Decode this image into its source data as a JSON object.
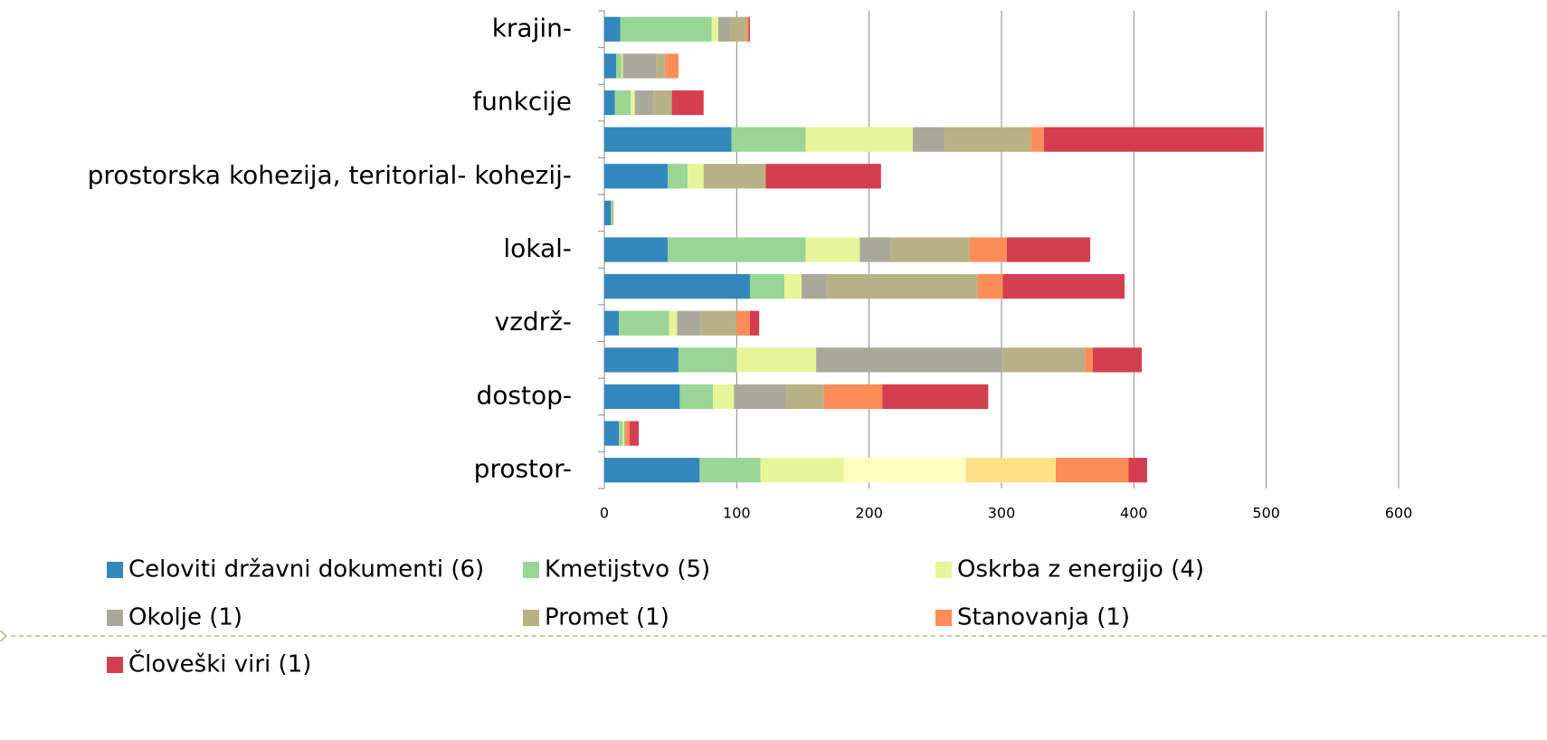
{
  "chart_data": {
    "type": "stacked-bar-horizontal",
    "categories": [
      "krajin-",
      null,
      "funkcije",
      null,
      "prostorska kohezija, teritorial- kohezij-",
      null,
      "lokal-",
      null,
      "vzdrž-",
      null,
      "dostop-",
      null,
      "prostor-"
    ],
    "series": [
      {
        "name": "Celoviti državni dokumenti (6)",
        "color": "#3288bd",
        "values": [
          12,
          9,
          8,
          96,
          48,
          5,
          48,
          110,
          11,
          56,
          57,
          11,
          72
        ]
      },
      {
        "name": "Kmetijstvo (5)",
        "color": "#99d594",
        "values": [
          69,
          4,
          12,
          56,
          15,
          1,
          104,
          26,
          38,
          44,
          25,
          3,
          46
        ]
      },
      {
        "name": "Oskrba z energijo (4)",
        "color": "#e6f598",
        "values": [
          5,
          1,
          3,
          81,
          12,
          0,
          41,
          13,
          6,
          60,
          16,
          1,
          63
        ]
      },
      {
        "name": "Okolje (1)",
        "color": "#a9a99b",
        "values": [
          9,
          25,
          14,
          24,
          0,
          0,
          23,
          19,
          18,
          140,
          39,
          0,
          0
        ]
      },
      {
        "name": "Promet (1)",
        "color": "#b8b185",
        "values": [
          13,
          7,
          14,
          65,
          47,
          1,
          60,
          114,
          27,
          63,
          29,
          1,
          0
        ]
      },
      {
        "color": "#ffffbf",
        "values": [
          0,
          0,
          0,
          0,
          0,
          0,
          0,
          0,
          0,
          0,
          0,
          0,
          92
        ]
      },
      {
        "color": "#fee08b",
        "values": [
          0,
          0,
          0,
          0,
          0,
          0,
          0,
          0,
          0,
          0,
          0,
          0,
          68
        ]
      },
      {
        "name": "Stanovanja (1)",
        "color": "#fc8d59",
        "values": [
          1,
          10,
          0,
          10,
          0,
          0,
          28,
          19,
          10,
          6,
          44,
          3,
          55
        ]
      },
      {
        "name": "Človeški viri (1)",
        "color": "#d53e4f",
        "values": [
          1,
          0,
          24,
          166,
          87,
          0,
          63,
          92,
          7,
          37,
          80,
          7,
          14
        ]
      }
    ],
    "xlim": [
      0,
      600
    ],
    "xticks": [
      0,
      100,
      200,
      300,
      400,
      500,
      600
    ],
    "grid": true
  }
}
